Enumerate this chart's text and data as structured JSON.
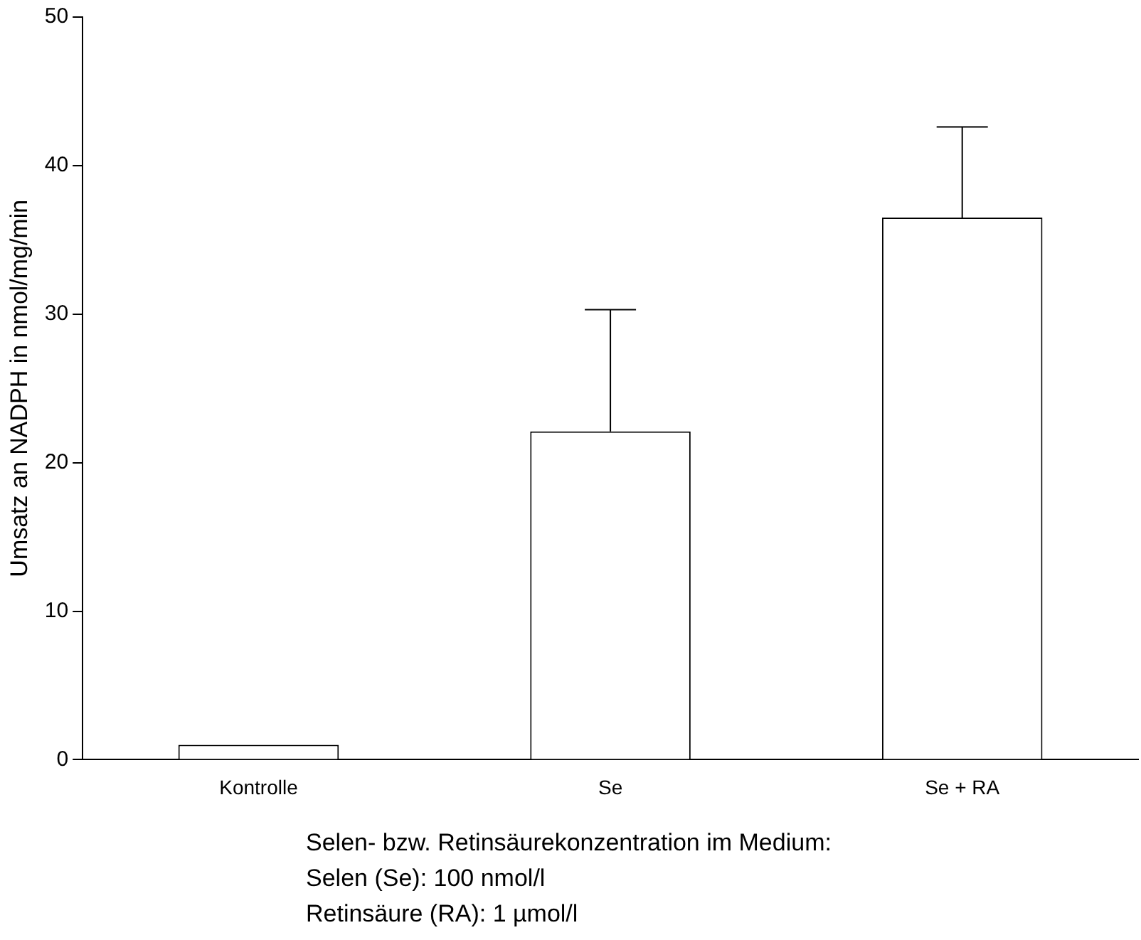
{
  "chart_data": {
    "type": "bar",
    "ylabel": "Umsatz an NADPH in nmol/mg/min",
    "categories": [
      "Kontrolle",
      "Se",
      "Se + RA"
    ],
    "values": [
      1.0,
      22.1,
      36.5
    ],
    "errors": [
      null,
      [
        22.1,
        30.3
      ],
      [
        36.5,
        42.6
      ]
    ],
    "color": "#ffffff",
    "ylim": [
      0,
      50
    ],
    "yticks": [
      0,
      10,
      20,
      30,
      40,
      50
    ],
    "grid": false,
    "legend": false,
    "annotations": [
      "Selen- bzw. Retinsäurekonzentration im Medium:",
      "Selen (Se): 100 nmol/l",
      "Retinsäure (RA): 1 µmol/l"
    ]
  }
}
